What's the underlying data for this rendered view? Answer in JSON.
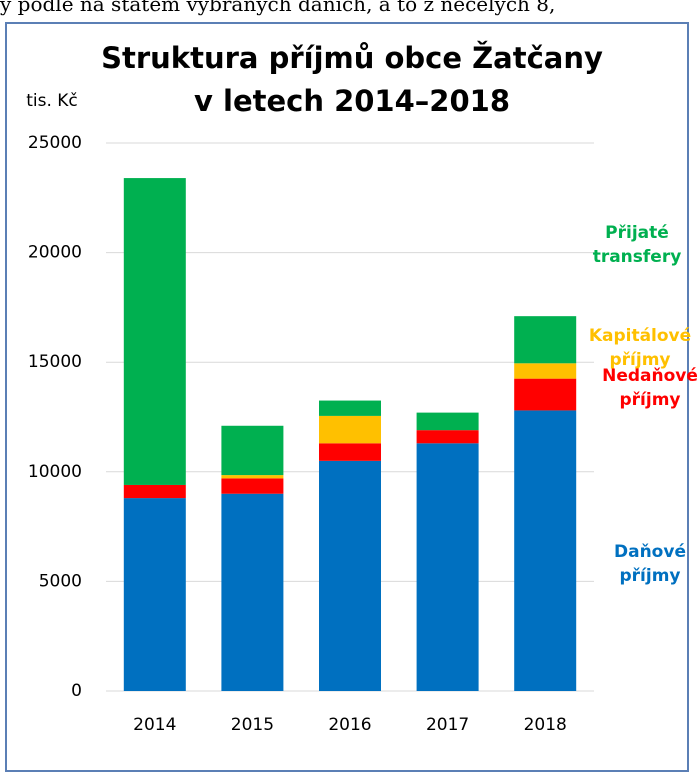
{
  "header_text": "y podle na státem vybraných daních, a to z necelých 8,",
  "chart_data": {
    "type": "stacked_bar",
    "title": [
      "Struktura příjmů obce Žatčany",
      "v letech 2014–2018"
    ],
    "y_label": "tis. Kč",
    "categories": [
      "2014",
      "2015",
      "2016",
      "2017",
      "2018"
    ],
    "series": [
      {
        "name": "Daňové příjmy",
        "color": "#0070c0",
        "values": [
          8800,
          9000,
          10500,
          11300,
          12800
        ]
      },
      {
        "name": "Nedaňové příjmy",
        "color": "#ff0000",
        "values": [
          600,
          700,
          800,
          600,
          1450
        ]
      },
      {
        "name": "Kapitálové příjmy",
        "color": "#ffc000",
        "values": [
          0,
          150,
          1250,
          0,
          700
        ]
      },
      {
        "name": "Přijaté transfery",
        "color": "#00b050",
        "values": [
          14000,
          2250,
          700,
          800,
          2150
        ]
      }
    ],
    "ylim": [
      0,
      25000
    ],
    "yticks": [
      0,
      5000,
      10000,
      15000,
      20000,
      25000
    ],
    "grid": true
  }
}
